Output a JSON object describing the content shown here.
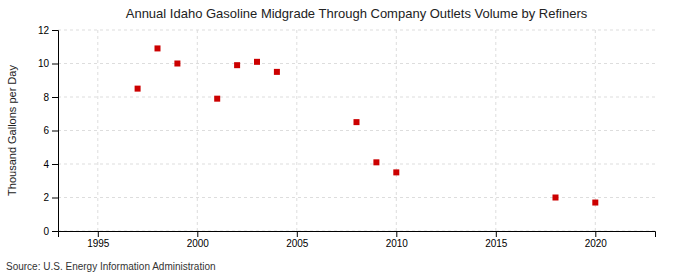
{
  "chart_data": {
    "type": "scatter",
    "title": "Annual Idaho Gasoline Midgrade Through Company Outlets Volume by Refiners",
    "ylabel": "Thousand Gallons per Day",
    "source": "Source: U.S. Energy Information Administration",
    "x": [
      1997,
      1998,
      1999,
      2001,
      2002,
      2003,
      2004,
      2008,
      2009,
      2010,
      2018,
      2020
    ],
    "y": [
      8.5,
      10.9,
      10.0,
      7.9,
      9.9,
      10.1,
      9.5,
      6.5,
      4.1,
      3.5,
      2.0,
      1.7
    ],
    "color": "#cc0000",
    "marker": "square",
    "xlim": [
      1993,
      2023
    ],
    "ylim": [
      0,
      12
    ],
    "xticks": [
      1995,
      2000,
      2005,
      2010,
      2015,
      2020
    ],
    "yticks": [
      0,
      2,
      4,
      6,
      8,
      10,
      12
    ],
    "grid": true
  }
}
